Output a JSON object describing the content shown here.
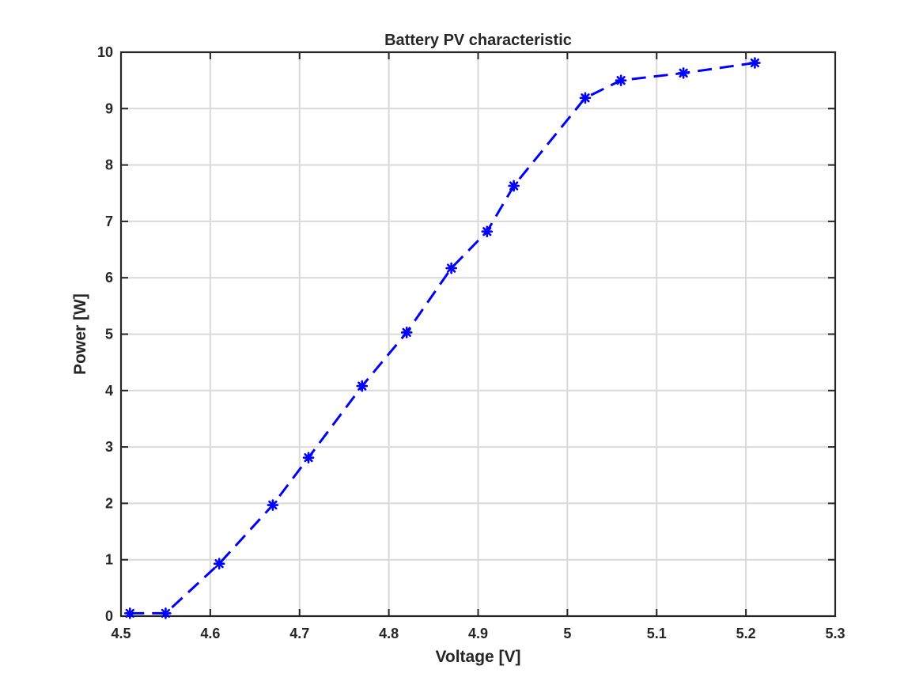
{
  "chart_data": {
    "type": "line",
    "title": "Battery PV characteristic",
    "xlabel": "Voltage [V]",
    "ylabel": "Power [W]",
    "xlim": [
      4.5,
      5.3
    ],
    "ylim": [
      0,
      10
    ],
    "xticks": [
      "4.5",
      "4.6",
      "4.7",
      "4.8",
      "4.9",
      "5",
      "5.1",
      "5.2",
      "5.3"
    ],
    "yticks": [
      "0",
      "1",
      "2",
      "3",
      "4",
      "5",
      "6",
      "7",
      "8",
      "9",
      "10"
    ],
    "grid": true,
    "line_style": "dashed",
    "marker": "asterisk",
    "series": [
      {
        "color": "#0000ff",
        "x": [
          4.51,
          4.55,
          4.61,
          4.67,
          4.71,
          4.77,
          4.82,
          4.87,
          4.91,
          4.94,
          5.02,
          5.06,
          5.13,
          5.21
        ],
        "y": [
          0.05,
          0.05,
          0.93,
          1.97,
          2.81,
          4.08,
          5.03,
          6.17,
          6.82,
          7.63,
          9.19,
          9.5,
          9.63,
          9.81
        ]
      }
    ]
  }
}
